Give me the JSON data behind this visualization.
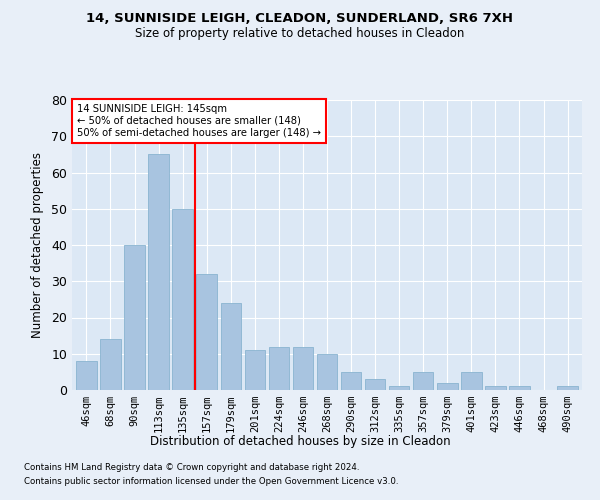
{
  "title1": "14, SUNNISIDE LEIGH, CLEADON, SUNDERLAND, SR6 7XH",
  "title2": "Size of property relative to detached houses in Cleadon",
  "xlabel": "Distribution of detached houses by size in Cleadon",
  "ylabel": "Number of detached properties",
  "categories": [
    "46sqm",
    "68sqm",
    "90sqm",
    "113sqm",
    "135sqm",
    "157sqm",
    "179sqm",
    "201sqm",
    "224sqm",
    "246sqm",
    "268sqm",
    "290sqm",
    "312sqm",
    "335sqm",
    "357sqm",
    "379sqm",
    "401sqm",
    "423sqm",
    "446sqm",
    "468sqm",
    "490sqm"
  ],
  "values": [
    8,
    14,
    40,
    65,
    50,
    32,
    24,
    11,
    12,
    12,
    10,
    5,
    3,
    1,
    5,
    2,
    5,
    1,
    1,
    0,
    1
  ],
  "bar_color": "#a8c4e0",
  "bar_edgecolor": "#8ab4d0",
  "vline_x": 4.5,
  "annotation_line1": "14 SUNNISIDE LEIGH: 145sqm",
  "annotation_line2": "← 50% of detached houses are smaller (148)",
  "annotation_line3": "50% of semi-detached houses are larger (148) →",
  "ylim": [
    0,
    80
  ],
  "yticks": [
    0,
    10,
    20,
    30,
    40,
    50,
    60,
    70,
    80
  ],
  "footnote1": "Contains HM Land Registry data © Crown copyright and database right 2024.",
  "footnote2": "Contains public sector information licensed under the Open Government Licence v3.0.",
  "bg_color": "#e8eff8",
  "plot_bg": "#dce8f5"
}
